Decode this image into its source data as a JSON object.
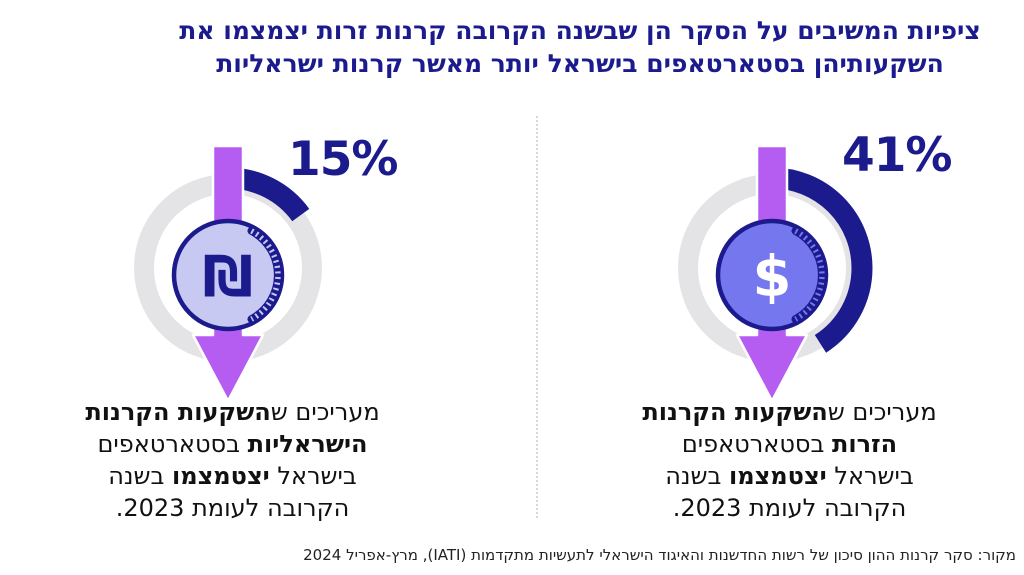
{
  "title": {
    "line1": "ציפיות המשיבים על הסקר הן שבשנה הקרובה קרנות זרות יצמצמו את",
    "line2": "השקעותיהן בסטארטאפים בישראל יותר מאשר קרנות ישראליות"
  },
  "panels": [
    {
      "id": "foreign-funds",
      "pct_label": "41%",
      "percent": 41,
      "coin_symbol": "$",
      "coin_fill": "#7477ee",
      "symbol_color": "#ffffff",
      "caption": [
        [
          {
            "t": "מעריכים ש",
            "b": 0
          },
          {
            "t": "השקעות הקרנות",
            "b": 1
          }
        ],
        [
          {
            "t": "הזרות",
            "b": 1
          },
          {
            "t": " בסטארטאפים",
            "b": 0
          }
        ],
        [
          {
            "t": "בישראל ",
            "b": 0
          },
          {
            "t": "יצטמצמו",
            "b": 1
          },
          {
            "t": " בשנה",
            "b": 0
          }
        ],
        [
          {
            "t": "הקרובה לעומת 2023.",
            "b": 0
          }
        ]
      ]
    },
    {
      "id": "israeli-funds",
      "pct_label": "15%",
      "percent": 15,
      "coin_symbol": "₪",
      "coin_fill": "#c7c9f2",
      "symbol_color": "#1b1b8e",
      "caption": [
        [
          {
            "t": "מעריכים ש",
            "b": 0
          },
          {
            "t": "השקעות הקרנות",
            "b": 1
          }
        ],
        [
          {
            "t": "הישראליות",
            "b": 1
          },
          {
            "t": " בסטארטאפים",
            "b": 0
          }
        ],
        [
          {
            "t": "בישראל ",
            "b": 0
          },
          {
            "t": "יצטמצמו",
            "b": 1
          },
          {
            "t": " בשנה",
            "b": 0
          }
        ],
        [
          {
            "t": "הקרובה לעומת 2023.",
            "b": 0
          }
        ]
      ]
    }
  ],
  "colors": {
    "navy": "#1b1b8e",
    "arrow_purple": "#b55df1",
    "ring_gray": "#e4e4e6",
    "coin_foreign": "#7477ee",
    "coin_israeli": "#c7c9f2",
    "text_black": "#111111"
  },
  "source": "מקור: סקר קרנות ההון סיכון של רשות החדשנות והאיגוד הישראלי לתעשיות מתקדמות (IATI), מרץ-אפריל 2024",
  "chart_data": {
    "type": "pie",
    "subtype": "donut-gauge-pair",
    "title": "ציפיות המשיבים על הסקר הן שבשנה הקרובה קרנות זרות יצמצמו את השקעותיהן בסטארטאפים בישראל יותר מאשר קרנות ישראליות",
    "categories": [
      "קרנות זרות",
      "קרנות ישראליות"
    ],
    "values": [
      41,
      15
    ],
    "unit": "%",
    "annotations": [
      "מעריכים שהשקעות הקרנות הזרות בסטארטאפים בישראל יצטמצמו בשנה הקרובה לעומת 2023.",
      "מעריכים שהשקעות הקרנות הישראליות בסטארטאפים בישראל יצטמצמו בשנה הקרובה לעומת 2023."
    ],
    "legend_position": "none",
    "source": "מקור: סקר קרנות ההון סיכון של רשות החדשנות והאיגוד הישראלי לתעשיות מתקדמות (IATI), מרץ-אפריל 2024"
  }
}
